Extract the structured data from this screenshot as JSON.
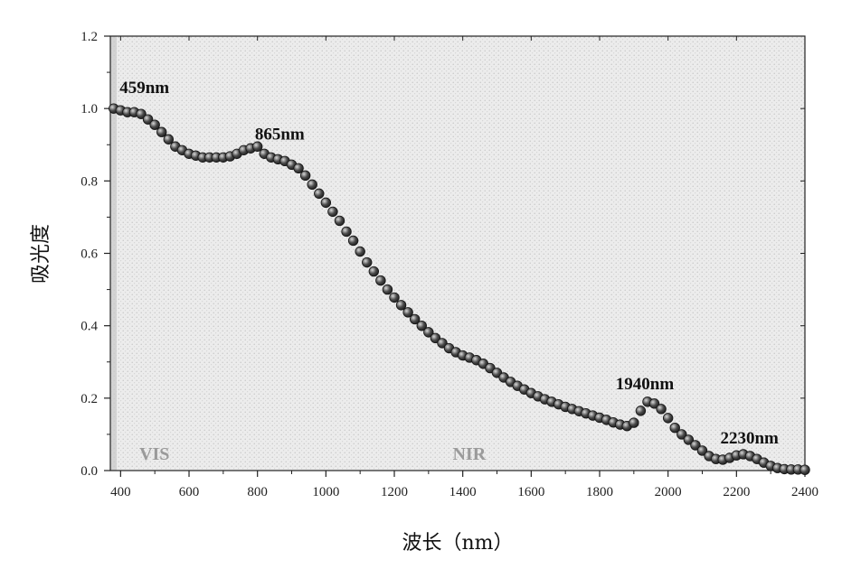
{
  "chart_data": {
    "type": "scatter",
    "title": "",
    "xlabel": "波长（nm）",
    "ylabel": "吸光度",
    "xlim": [
      370,
      2400
    ],
    "ylim": [
      0,
      1.2
    ],
    "xticks": [
      400,
      600,
      800,
      1000,
      1200,
      1400,
      1600,
      1800,
      2000,
      2200,
      2400
    ],
    "yticks": [
      "0.0",
      "0.2",
      "0.4",
      "0.6",
      "0.8",
      "1.0",
      "1.2"
    ],
    "grid": false,
    "series": [
      {
        "name": "absorbance",
        "x": [
          380,
          400,
          420,
          440,
          460,
          480,
          500,
          520,
          540,
          560,
          580,
          600,
          620,
          640,
          660,
          680,
          700,
          720,
          740,
          760,
          780,
          800,
          820,
          840,
          860,
          880,
          900,
          920,
          940,
          960,
          980,
          1000,
          1020,
          1040,
          1060,
          1080,
          1100,
          1120,
          1140,
          1160,
          1180,
          1200,
          1220,
          1240,
          1260,
          1280,
          1300,
          1320,
          1340,
          1360,
          1380,
          1400,
          1420,
          1440,
          1460,
          1480,
          1500,
          1520,
          1540,
          1560,
          1580,
          1600,
          1620,
          1640,
          1660,
          1680,
          1700,
          1720,
          1740,
          1760,
          1780,
          1800,
          1820,
          1840,
          1860,
          1880,
          1900,
          1920,
          1940,
          1960,
          1980,
          2000,
          2020,
          2040,
          2060,
          2080,
          2100,
          2120,
          2140,
          2160,
          2180,
          2200,
          2220,
          2240,
          2260,
          2280,
          2300,
          2320,
          2340,
          2360,
          2380,
          2400
        ],
        "y": [
          1.0,
          0.995,
          0.99,
          0.99,
          0.985,
          0.97,
          0.955,
          0.935,
          0.915,
          0.895,
          0.885,
          0.875,
          0.87,
          0.865,
          0.865,
          0.865,
          0.865,
          0.868,
          0.875,
          0.885,
          0.89,
          0.895,
          0.875,
          0.865,
          0.86,
          0.855,
          0.845,
          0.835,
          0.815,
          0.79,
          0.765,
          0.74,
          0.715,
          0.69,
          0.66,
          0.635,
          0.605,
          0.575,
          0.55,
          0.525,
          0.5,
          0.478,
          0.457,
          0.437,
          0.418,
          0.4,
          0.382,
          0.366,
          0.352,
          0.338,
          0.327,
          0.318,
          0.312,
          0.305,
          0.295,
          0.283,
          0.27,
          0.257,
          0.245,
          0.234,
          0.224,
          0.214,
          0.205,
          0.197,
          0.19,
          0.183,
          0.176,
          0.17,
          0.164,
          0.158,
          0.152,
          0.146,
          0.14,
          0.133,
          0.127,
          0.123,
          0.132,
          0.165,
          0.19,
          0.185,
          0.17,
          0.145,
          0.118,
          0.1,
          0.085,
          0.07,
          0.055,
          0.04,
          0.032,
          0.03,
          0.035,
          0.042,
          0.045,
          0.04,
          0.032,
          0.022,
          0.013,
          0.007,
          0.004,
          0.003,
          0.003,
          0.002
        ]
      }
    ],
    "annotations": [
      {
        "text": "459nm",
        "x": 459,
        "y": 1.0
      },
      {
        "text": "865nm",
        "x": 865,
        "y": 0.86
      },
      {
        "text": "1940nm",
        "x": 1940,
        "y": 0.19
      },
      {
        "text": "2230nm",
        "x": 2230,
        "y": 0.045
      }
    ],
    "regions": [
      {
        "text": "VIS",
        "x": 520
      },
      {
        "text": "NIR",
        "x": 1440
      }
    ],
    "colors": {
      "marker": "#3a3a3a",
      "marker_highlight": "#cfcfcf",
      "plot_bg": "#e9e9e9",
      "axis": "#222222",
      "region_text": "#9a9a9a"
    }
  }
}
